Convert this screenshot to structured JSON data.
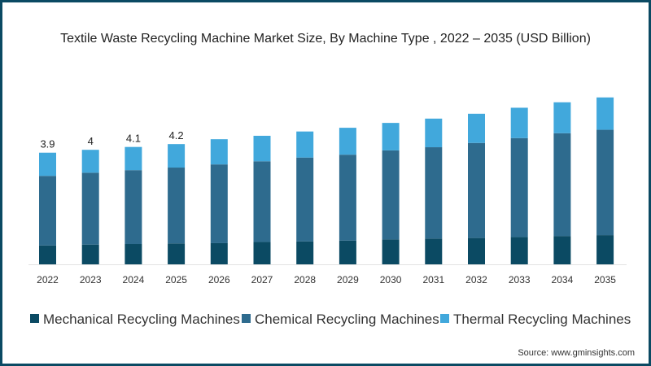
{
  "chart_data": {
    "type": "bar",
    "stacked": true,
    "title": "Textile Waste Recycling Machine Market Size, By Machine Type , 2022 – 2035 (USD Billion)",
    "xlabel": "",
    "ylabel": "",
    "ylim": [
      0,
      6.5
    ],
    "grid": false,
    "legend_position": "bottom",
    "categories": [
      "2022",
      "2023",
      "2024",
      "2025",
      "2026",
      "2027",
      "2028",
      "2029",
      "2030",
      "2031",
      "2032",
      "2033",
      "2034",
      "2035"
    ],
    "series": [
      {
        "name": "Mechanical Recycling Machines",
        "color": "#0b4a63",
        "values": [
          0.66,
          0.69,
          0.71,
          0.73,
          0.74,
          0.78,
          0.8,
          0.83,
          0.87,
          0.9,
          0.92,
          0.95,
          0.99,
          1.02
        ]
      },
      {
        "name": "Chemical Recycling Machines",
        "color": "#2e6b8e",
        "values": [
          2.43,
          2.51,
          2.58,
          2.65,
          2.75,
          2.82,
          2.93,
          3.0,
          3.11,
          3.19,
          3.32,
          3.46,
          3.59,
          3.68
        ]
      },
      {
        "name": "Thermal Recycling Machines",
        "color": "#41a8dc",
        "values": [
          0.81,
          0.8,
          0.81,
          0.82,
          0.88,
          0.89,
          0.91,
          0.94,
          0.96,
          1.0,
          1.02,
          1.06,
          1.08,
          1.13
        ]
      }
    ],
    "data_labels": [
      "3.9",
      "4",
      "4.1",
      "4.2"
    ],
    "source": "Source: www.gminsights.com"
  }
}
